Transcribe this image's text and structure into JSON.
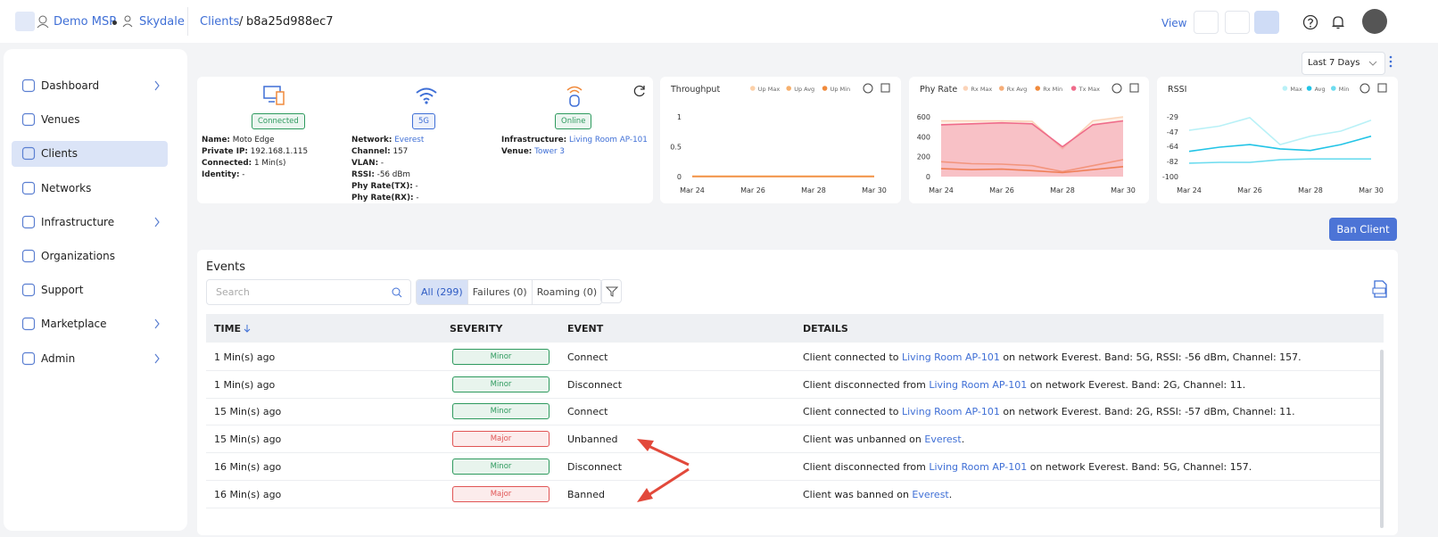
{
  "header": {
    "org": "Demo MSP",
    "site": "Skydale",
    "breadcrumb": "Clients",
    "separator": "/",
    "client_id": "b8a25d988ec7",
    "view": "View"
  },
  "sidebar": [
    {
      "label": "Dashboard",
      "has_submenu": true
    },
    {
      "label": "Venues"
    },
    {
      "label": "Clients",
      "active": true
    },
    {
      "label": "Networks"
    },
    {
      "label": "Infrastructure",
      "has_submenu": true
    },
    {
      "label": "Organizations"
    },
    {
      "label": "Support"
    },
    {
      "label": "Marketplace",
      "has_submenu": true
    },
    {
      "label": "Admin",
      "has_submenu": true
    }
  ],
  "range": "Last 7 Days",
  "client": {
    "statuses": [
      {
        "text": "Connected",
        "color": "#2e9a5e"
      },
      {
        "text": "5G",
        "color": "#3f6fd6"
      },
      {
        "text": "Online",
        "color": "#2e9a5e"
      }
    ],
    "columns": [
      [
        {
          "label": "Name:",
          "value": "Moto Edge"
        },
        {
          "label": "Private IP:",
          "value": "192.168.1.115"
        },
        {
          "label": "Connected:",
          "value": "1 Min(s)"
        },
        {
          "label": "Identity:",
          "value": "-"
        }
      ],
      [
        {
          "label": "Network:",
          "value": "Everest",
          "link": true
        },
        {
          "label": "Channel:",
          "value": "157"
        },
        {
          "label": "VLAN:",
          "value": "-"
        },
        {
          "label": "RSSI:",
          "value": "-56 dBm"
        },
        {
          "label": "Phy Rate(TX):",
          "value": "-"
        },
        {
          "label": "Phy Rate(RX):",
          "value": "-"
        }
      ],
      [
        {
          "label": "Infrastructure:",
          "value": "Living Room AP-101",
          "link": true
        },
        {
          "label": "Venue:",
          "value": "Tower 3",
          "link": true
        }
      ]
    ]
  },
  "chart_data": [
    {
      "type": "line",
      "title": "Throughput",
      "categories": [
        "Mar 24",
        null,
        "Mar 26",
        null,
        "Mar 28",
        null,
        "Mar 30"
      ],
      "ylim": [
        0,
        1
      ],
      "yticks": [
        0,
        0.5,
        1
      ],
      "series": [
        {
          "name": "Up Max",
          "color": "#fcd0a8",
          "values": [
            0.01,
            0.01,
            0.01,
            0.01,
            0.01,
            0.01,
            0.01
          ]
        },
        {
          "name": "Up Avg",
          "color": "#f6b06e",
          "values": [
            0.005,
            0.005,
            0.005,
            0.005,
            0.005,
            0.005,
            0.005
          ]
        },
        {
          "name": "Up Min",
          "color": "#f08a3c",
          "values": [
            0,
            0,
            0,
            0,
            0,
            0,
            0
          ]
        }
      ]
    },
    {
      "type": "line",
      "title": "Phy Rate",
      "categories": [
        "Mar 24",
        null,
        "Mar 26",
        null,
        "Mar 28",
        null,
        "Mar 30"
      ],
      "ylim": [
        0,
        600
      ],
      "yticks": [
        0,
        200,
        400,
        600
      ],
      "series": [
        {
          "name": "Rx Max",
          "color": "#fbd3b8",
          "fill": true,
          "values": [
            560,
            560,
            560,
            555,
            280,
            560,
            600
          ]
        },
        {
          "name": "Rx Avg",
          "color": "#f6ad78",
          "values": [
            150,
            130,
            125,
            110,
            50,
            110,
            170
          ]
        },
        {
          "name": "Rx Min",
          "color": "#f08a3c",
          "values": [
            80,
            70,
            75,
            60,
            40,
            70,
            100
          ]
        },
        {
          "name": "Tx Max",
          "color": "#ef6b8a",
          "fill": true,
          "values": [
            520,
            530,
            540,
            530,
            300,
            520,
            560
          ]
        }
      ]
    },
    {
      "type": "line",
      "title": "RSSI",
      "categories": [
        "Mar 24",
        null,
        "Mar 26",
        null,
        "Mar 28",
        null,
        "Mar 30"
      ],
      "ylim": [
        -100,
        -29
      ],
      "yticks": [
        -100,
        -82,
        -64,
        -47,
        -29
      ],
      "series": [
        {
          "name": "Max",
          "color": "#b9f1f7",
          "values": [
            -45,
            -40,
            -30,
            -62,
            -52,
            -46,
            -33
          ]
        },
        {
          "name": "Avg",
          "color": "#22c4e6",
          "values": [
            -70,
            -65,
            -62,
            -67,
            -69,
            -62,
            -52
          ]
        },
        {
          "name": "Min",
          "color": "#6ddcef",
          "values": [
            -84,
            -83,
            -83,
            -80,
            -79,
            -79,
            -79
          ]
        }
      ]
    }
  ],
  "ban_button": "Ban Client",
  "events": {
    "title": "Events",
    "search_placeholder": "Search",
    "tabs": [
      "All (299)",
      "Failures (0)",
      "Roaming (0)"
    ],
    "headers": [
      "TIME",
      "SEVERITY",
      "EVENT",
      "DETAILS"
    ],
    "rows": [
      {
        "time": "1 Min(s) ago",
        "severity": "Minor",
        "severity_color": "#2e9a5e",
        "event": "Connect",
        "details": {
          "before": "Client connected to ",
          "link": "Living Room AP-101",
          "after": " on network Everest. Band: 5G, RSSI: -56 dBm, Channel: 157."
        }
      },
      {
        "time": "1 Min(s) ago",
        "severity": "Minor",
        "severity_color": "#2e9a5e",
        "event": "Disconnect",
        "details": {
          "before": "Client disconnected from ",
          "link": "Living Room AP-101",
          "after": " on network Everest. Band: 2G, Channel: 11."
        }
      },
      {
        "time": "15 Min(s) ago",
        "severity": "Minor",
        "severity_color": "#2e9a5e",
        "event": "Connect",
        "details": {
          "before": "Client connected to ",
          "link": "Living Room AP-101",
          "after": " on network Everest. Band: 2G, RSSI: -57 dBm, Channel: 11."
        }
      },
      {
        "time": "15 Min(s) ago",
        "severity": "Major",
        "severity_color": "#e05555",
        "event": "Unbanned",
        "details": {
          "before": "Client was unbanned on ",
          "link": "Everest",
          "after": "."
        }
      },
      {
        "time": "16 Min(s) ago",
        "severity": "Minor",
        "severity_color": "#2e9a5e",
        "event": "Disconnect",
        "details": {
          "before": "Client disconnected from ",
          "link": "Living Room AP-101",
          "after": " on network Everest. Band: 5G, Channel: 157."
        }
      },
      {
        "time": "16 Min(s) ago",
        "severity": "Major",
        "severity_color": "#e05555",
        "event": "Banned",
        "details": {
          "before": "Client was banned on ",
          "link": "Everest",
          "after": "."
        }
      }
    ]
  }
}
